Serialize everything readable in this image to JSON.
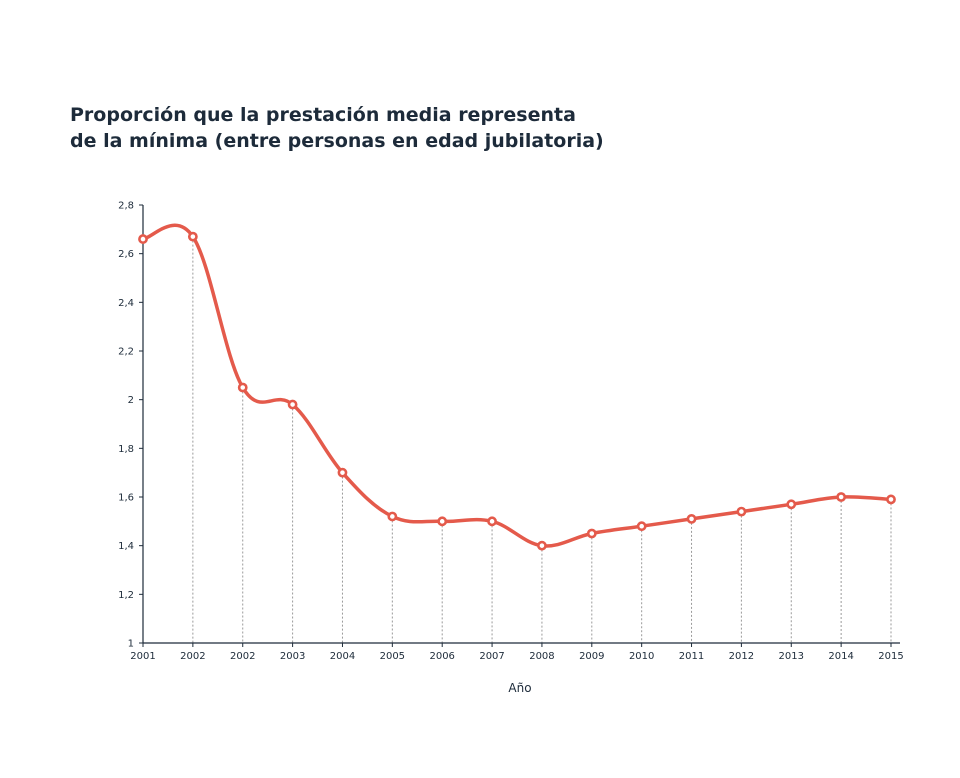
{
  "title_lines": [
    "Proporción que la prestación media representa",
    "de la mínima (entre personas en edad jubilatoria)"
  ],
  "chart_data": {
    "type": "line",
    "title": "Proporción que la prestación media representa de la mínima (entre personas en edad jubilatoria)",
    "xlabel": "Año",
    "ylabel": "",
    "categories": [
      "2001",
      "2002",
      "2002",
      "2003",
      "2004",
      "2005",
      "2006",
      "2007",
      "2008",
      "2009",
      "2010",
      "2011",
      "2012",
      "2013",
      "2014",
      "2015"
    ],
    "series": [
      {
        "values": [
          2.66,
          2.67,
          2.05,
          1.98,
          1.7,
          1.52,
          1.5,
          1.5,
          1.4,
          1.45,
          1.48,
          1.51,
          1.54,
          1.57,
          1.6,
          1.59
        ]
      }
    ],
    "ylim": [
      1,
      2.8
    ],
    "yticks": [
      1,
      1.2,
      1.4,
      1.6,
      1.8,
      2,
      2.2,
      2.4,
      2.6,
      2.8
    ],
    "ytick_labels": [
      "1",
      "1,2",
      "1,4",
      "1,6",
      "1,8",
      "2",
      "2,2",
      "2,4",
      "2,6",
      "2,8"
    ],
    "grid": "vertical dashed drop lines",
    "legend": "none",
    "colors": {
      "line": "#e45a4b",
      "marker_fill": "#ffffff",
      "axis": "#1d2b3a",
      "dropline": "#9a9a9a"
    }
  }
}
